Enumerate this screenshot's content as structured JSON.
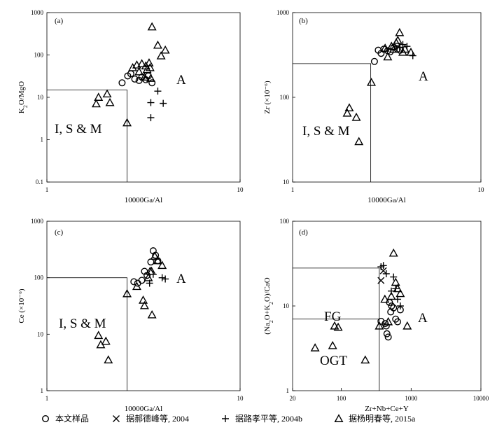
{
  "chart_data": [
    {
      "panel": "(a)",
      "type": "scatter",
      "xscale": "log",
      "yscale": "log",
      "xlim": [
        1,
        10
      ],
      "ylim": [
        0.1,
        1000
      ],
      "xticks": [
        "1",
        "10"
      ],
      "yticks": [
        "0.1",
        "1",
        "10",
        "100",
        "1000"
      ],
      "xlabel": "10000Ga/Al",
      "ylabel": "K2O/MgO",
      "regions": [
        {
          "label": "I, S & M",
          "x": 1.35,
          "y": 3.0
        },
        {
          "label": "A",
          "x": 7.0,
          "y": 25
        }
      ],
      "boundary": {
        "x": 2.6,
        "y": 15
      },
      "series": [
        {
          "name": "本文样品",
          "marker": "circle",
          "points": [
            [
              2.45,
              22
            ],
            [
              2.62,
              32
            ],
            [
              2.72,
              36
            ],
            [
              2.85,
              27
            ],
            [
              3.0,
              25
            ],
            [
              3.1,
              30
            ],
            [
              3.25,
              26
            ],
            [
              3.35,
              32
            ],
            [
              3.5,
              22
            ]
          ]
        },
        {
          "name": "据郝德峰等, 2004",
          "marker": "x",
          "points": []
        },
        {
          "name": "据路孝平等, 2004b",
          "marker": "plus",
          "points": [
            [
              3.75,
              14
            ],
            [
              3.45,
              7.5
            ],
            [
              4.0,
              7.2
            ],
            [
              3.45,
              3.3
            ]
          ]
        },
        {
          "name": "据杨明春等, 2015a",
          "marker": "triangle",
          "points": [
            [
              1.8,
              7
            ],
            [
              1.85,
              10
            ],
            [
              2.05,
              12
            ],
            [
              2.12,
              7.5
            ],
            [
              2.6,
              2.5
            ],
            [
              2.78,
              50
            ],
            [
              2.92,
              58
            ],
            [
              3.0,
              40
            ],
            [
              3.1,
              62
            ],
            [
              3.2,
              30
            ],
            [
              3.25,
              55
            ],
            [
              3.3,
              45
            ],
            [
              3.38,
              65
            ],
            [
              3.42,
              50
            ],
            [
              3.45,
              28
            ],
            [
              3.5,
              460
            ],
            [
              3.75,
              170
            ],
            [
              3.9,
              95
            ],
            [
              4.1,
              130
            ]
          ]
        }
      ]
    },
    {
      "panel": "(b)",
      "type": "scatter",
      "xscale": "log",
      "yscale": "log",
      "xlim": [
        1,
        10
      ],
      "ylim": [
        10,
        1000
      ],
      "xticks": [
        "1",
        "10"
      ],
      "yticks": [
        "10",
        "100",
        "1000"
      ],
      "xlabel": "10000Ga/Al",
      "ylabel": "Zr (×10⁻⁶)",
      "regions": [
        {
          "label": "I, S & M",
          "x": 1.35,
          "y": 45
        },
        {
          "label": "A",
          "x": 6.8,
          "y": 220
        }
      ],
      "boundary": {
        "x": 2.6,
        "y": 250
      },
      "series": [
        {
          "name": "本文样品",
          "marker": "circle",
          "points": [
            [
              2.72,
              265
            ],
            [
              2.85,
              360
            ],
            [
              2.95,
              330
            ],
            [
              3.05,
              370
            ],
            [
              3.2,
              355
            ],
            [
              3.3,
              345
            ],
            [
              3.45,
              390
            ],
            [
              3.6,
              370
            ],
            [
              3.72,
              360
            ]
          ]
        },
        {
          "name": "据郝德峰等, 2004",
          "marker": "x",
          "points": []
        },
        {
          "name": "据路孝平等, 2004b",
          "marker": "plus",
          "points": [
            [
              3.7,
              390
            ],
            [
              3.85,
              420
            ],
            [
              4.05,
              400
            ],
            [
              4.35,
              310
            ]
          ]
        },
        {
          "name": "据杨明春等, 2015a",
          "marker": "triangle",
          "points": [
            [
              1.95,
              65
            ],
            [
              2.0,
              75
            ],
            [
              2.18,
              58
            ],
            [
              2.25,
              30
            ],
            [
              2.62,
              150
            ],
            [
              3.1,
              380
            ],
            [
              3.2,
              300
            ],
            [
              3.35,
              400
            ],
            [
              3.45,
              370
            ],
            [
              3.55,
              440
            ],
            [
              3.62,
              470
            ],
            [
              3.7,
              580
            ],
            [
              3.85,
              340
            ],
            [
              3.95,
              370
            ],
            [
              4.25,
              340
            ]
          ]
        }
      ]
    },
    {
      "panel": "(c)",
      "type": "scatter",
      "xscale": "log",
      "yscale": "log",
      "xlim": [
        1,
        10
      ],
      "ylim": [
        1,
        1000
      ],
      "xticks": [
        "1",
        "10"
      ],
      "yticks": [
        "1",
        "10",
        "100",
        "1000"
      ],
      "xlabel": "10000Ga/Al",
      "ylabel": "Ce (×10⁻⁶)",
      "regions": [
        {
          "label": "I, S & M",
          "x": 1.35,
          "y": 15
        },
        {
          "label": "A",
          "x": 7.0,
          "y": 95
        }
      ],
      "boundary": {
        "x": 2.6,
        "y": 100
      },
      "series": [
        {
          "name": "本文样品",
          "marker": "circle",
          "points": [
            [
              2.82,
              85
            ],
            [
              2.95,
              80
            ],
            [
              3.1,
              90
            ],
            [
              3.2,
              130
            ],
            [
              3.3,
              110
            ],
            [
              3.45,
              190
            ],
            [
              3.55,
              300
            ],
            [
              3.65,
              250
            ],
            [
              3.75,
              200
            ]
          ]
        },
        {
          "name": "据郝德峰等, 2004",
          "marker": "x",
          "points": []
        },
        {
          "name": "据路孝平等, 2004b",
          "marker": "plus",
          "points": [
            [
              3.4,
              80
            ],
            [
              3.55,
              115
            ],
            [
              3.95,
              100
            ],
            [
              4.1,
              95
            ]
          ]
        },
        {
          "name": "据杨明春等, 2015a",
          "marker": "triangle",
          "points": [
            [
              1.85,
              9.5
            ],
            [
              1.9,
              6.5
            ],
            [
              2.02,
              7.5
            ],
            [
              2.08,
              3.5
            ],
            [
              2.6,
              52
            ],
            [
              2.92,
              70
            ],
            [
              3.15,
              40
            ],
            [
              3.2,
              32
            ],
            [
              3.35,
              100
            ],
            [
              3.42,
              130
            ],
            [
              3.48,
              130
            ],
            [
              3.5,
              22
            ],
            [
              3.62,
              240
            ],
            [
              3.75,
              200
            ],
            [
              3.95,
              165
            ]
          ]
        }
      ]
    },
    {
      "panel": "(d)",
      "type": "scatter",
      "xscale": "log",
      "yscale": "log",
      "xlim": [
        20,
        10000
      ],
      "ylim": [
        1,
        100
      ],
      "xticks": [
        "20",
        "100",
        "1000",
        "10000"
      ],
      "yticks": [
        "1",
        "10",
        "100"
      ],
      "xlabel": "Zr+Nb+Ce+Y",
      "ylabel": "(Na2O+K2O)/CaO",
      "regions": [
        {
          "label": "FG",
          "x": 100,
          "y": 10
        },
        {
          "label": "OGT",
          "x": 120,
          "y": 2.2
        },
        {
          "label": "A",
          "x": 1500,
          "y": 8.5
        }
      ],
      "boundary": {
        "x": 350,
        "y_top": 28,
        "y_mid": 7
      },
      "series": [
        {
          "name": "本文样品",
          "marker": "circle",
          "points": [
            [
              370,
              6.6
            ],
            [
              425,
              6.2
            ],
            [
              440,
              5.8
            ],
            [
              450,
              4.7
            ],
            [
              470,
              4.3
            ],
            [
              490,
              11
            ],
            [
              510,
              8.5
            ],
            [
              525,
              10
            ],
            [
              560,
              9.5
            ],
            [
              600,
              7
            ],
            [
              640,
              6.5
            ],
            [
              700,
              9
            ]
          ]
        },
        {
          "name": "据郝德峰等, 2004",
          "marker": "x",
          "points": [
            [
              370,
              20
            ],
            [
              400,
              26
            ]
          ]
        },
        {
          "name": "据路孝平等, 2004b",
          "marker": "plus",
          "points": [
            [
              370,
              29
            ],
            [
              400,
              30
            ],
            [
              440,
              24
            ],
            [
              520,
              15
            ],
            [
              560,
              22
            ],
            [
              600,
              16
            ],
            [
              640,
              12
            ],
            [
              700,
              10
            ]
          ]
        },
        {
          "name": "据杨明春等, 2015a",
          "marker": "triangle",
          "points": [
            [
              42,
              3.2
            ],
            [
              75,
              3.4
            ],
            [
              80,
              5.8
            ],
            [
              90,
              5.6
            ],
            [
              220,
              2.3
            ],
            [
              350,
              5.8
            ],
            [
              420,
              12
            ],
            [
              470,
              6.5
            ],
            [
              520,
              13
            ],
            [
              560,
              42
            ],
            [
              600,
              19
            ],
            [
              640,
              16
            ],
            [
              700,
              14
            ],
            [
              880,
              5.8
            ]
          ]
        }
      ]
    }
  ],
  "legend": {
    "items": [
      {
        "marker": "circle",
        "label": "本文样品"
      },
      {
        "marker": "x",
        "label": "据郝德峰等, 2004"
      },
      {
        "marker": "plus",
        "label": "据路孝平等, 2004b"
      },
      {
        "marker": "triangle",
        "label": "据杨明春等, 2015a"
      }
    ]
  }
}
